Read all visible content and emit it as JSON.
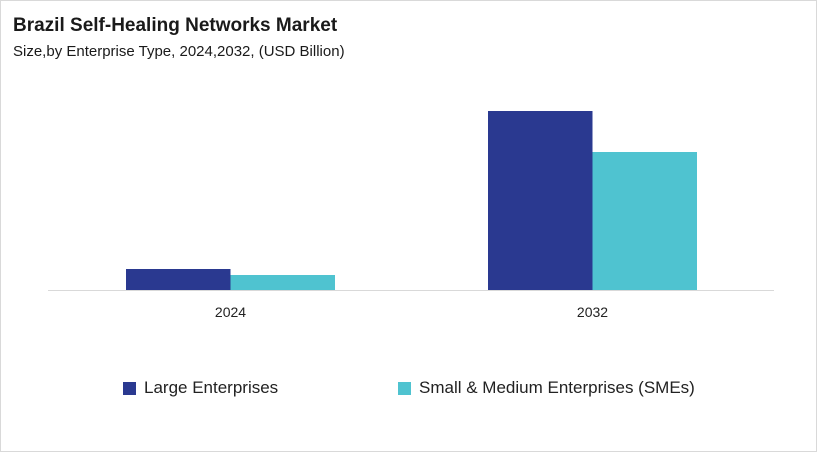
{
  "chart_data": {
    "type": "bar",
    "title": "Brazil Self-Healing Networks Market",
    "subtitle": "Size,by Enterprise Type, 2024,2032, (USD Billion)",
    "categories": [
      "2024",
      "2032"
    ],
    "series": [
      {
        "name": "Large Enterprises",
        "values": [
          0.21,
          1.79
        ],
        "color": "#2a3990"
      },
      {
        "name": "Small & Medium Enterprises (SMEs)",
        "values": [
          0.15,
          1.38
        ],
        "color": "#4fc3d0"
      }
    ],
    "ylim": [
      0,
      1.79
    ],
    "grid": false,
    "y_axis_shown": false,
    "legend": "bottom"
  }
}
